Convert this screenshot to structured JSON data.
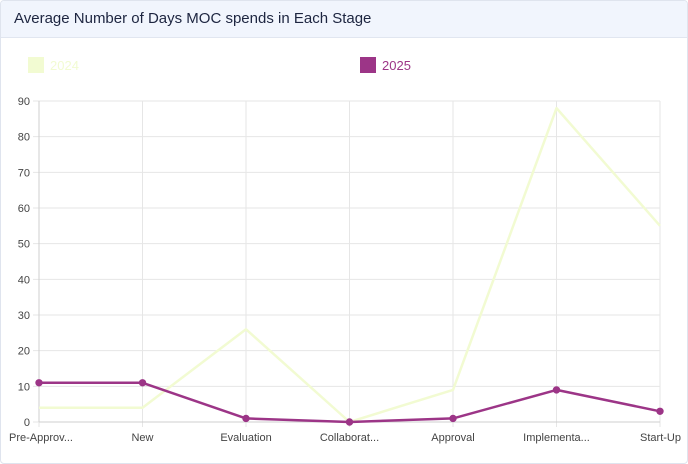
{
  "header": {
    "title": "Average Number of Days MOC spends in Each Stage"
  },
  "chart_data": {
    "type": "line",
    "categories": [
      "Pre-Approv...",
      "New",
      "Evaluation",
      "Collaborat...",
      "Approval",
      "Implementa...",
      "Start-Up"
    ],
    "ylim": [
      0,
      90
    ],
    "yticks": [
      0,
      10,
      20,
      30,
      40,
      50,
      60,
      70,
      80,
      90
    ],
    "grid": true,
    "legend_position": "top",
    "series": [
      {
        "name": "2024",
        "color": "#f2fbd2",
        "markers": false,
        "values": [
          4,
          4,
          26,
          0,
          9,
          88,
          55
        ]
      },
      {
        "name": "2025",
        "color": "#9c3587",
        "markers": true,
        "values": [
          11,
          11,
          1,
          0,
          1,
          9,
          3
        ]
      }
    ]
  }
}
